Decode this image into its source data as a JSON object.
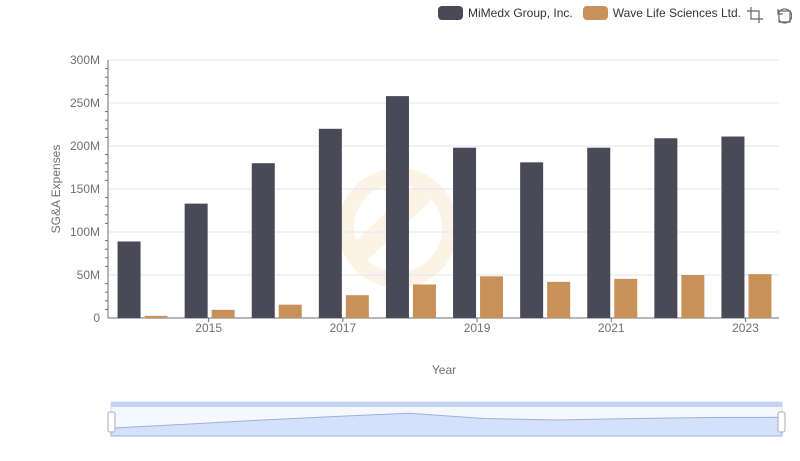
{
  "chart_data": {
    "type": "bar",
    "title": "",
    "xlabel": "Year",
    "ylabel": "SG&A Expenses",
    "x": [
      2014,
      2015,
      2016,
      2017,
      2018,
      2019,
      2020,
      2021,
      2022,
      2023
    ],
    "x_tick_labels": [
      "2015",
      "2017",
      "2019",
      "2021",
      "2023"
    ],
    "y_tick_labels": [
      "0",
      "50M",
      "100M",
      "150M",
      "200M",
      "250M",
      "300M"
    ],
    "ylim": [
      0,
      300000000
    ],
    "series": [
      {
        "name": "MiMedx Group, Inc.",
        "color": "#4a4957",
        "values": [
          89000000,
          133000000,
          180000000,
          220000000,
          258000000,
          198000000,
          181000000,
          198000000,
          209000000,
          211000000
        ]
      },
      {
        "name": "Wave Life Sciences Ltd.",
        "color": "#c8915a",
        "values": [
          2500000,
          9500000,
          15500000,
          26500000,
          39000000,
          48500000,
          42000000,
          45500000,
          50000000,
          51000000
        ]
      }
    ],
    "legend_position": "top-right"
  },
  "toolbox": {
    "zoom_icon": "data-zoom-icon",
    "restore_icon": "restore-icon"
  },
  "colors": {
    "grid": "#e0e6f1",
    "axis": "#6e7079",
    "slider_fill": "#d5e0fb",
    "slider_border": "#9bb0df"
  }
}
